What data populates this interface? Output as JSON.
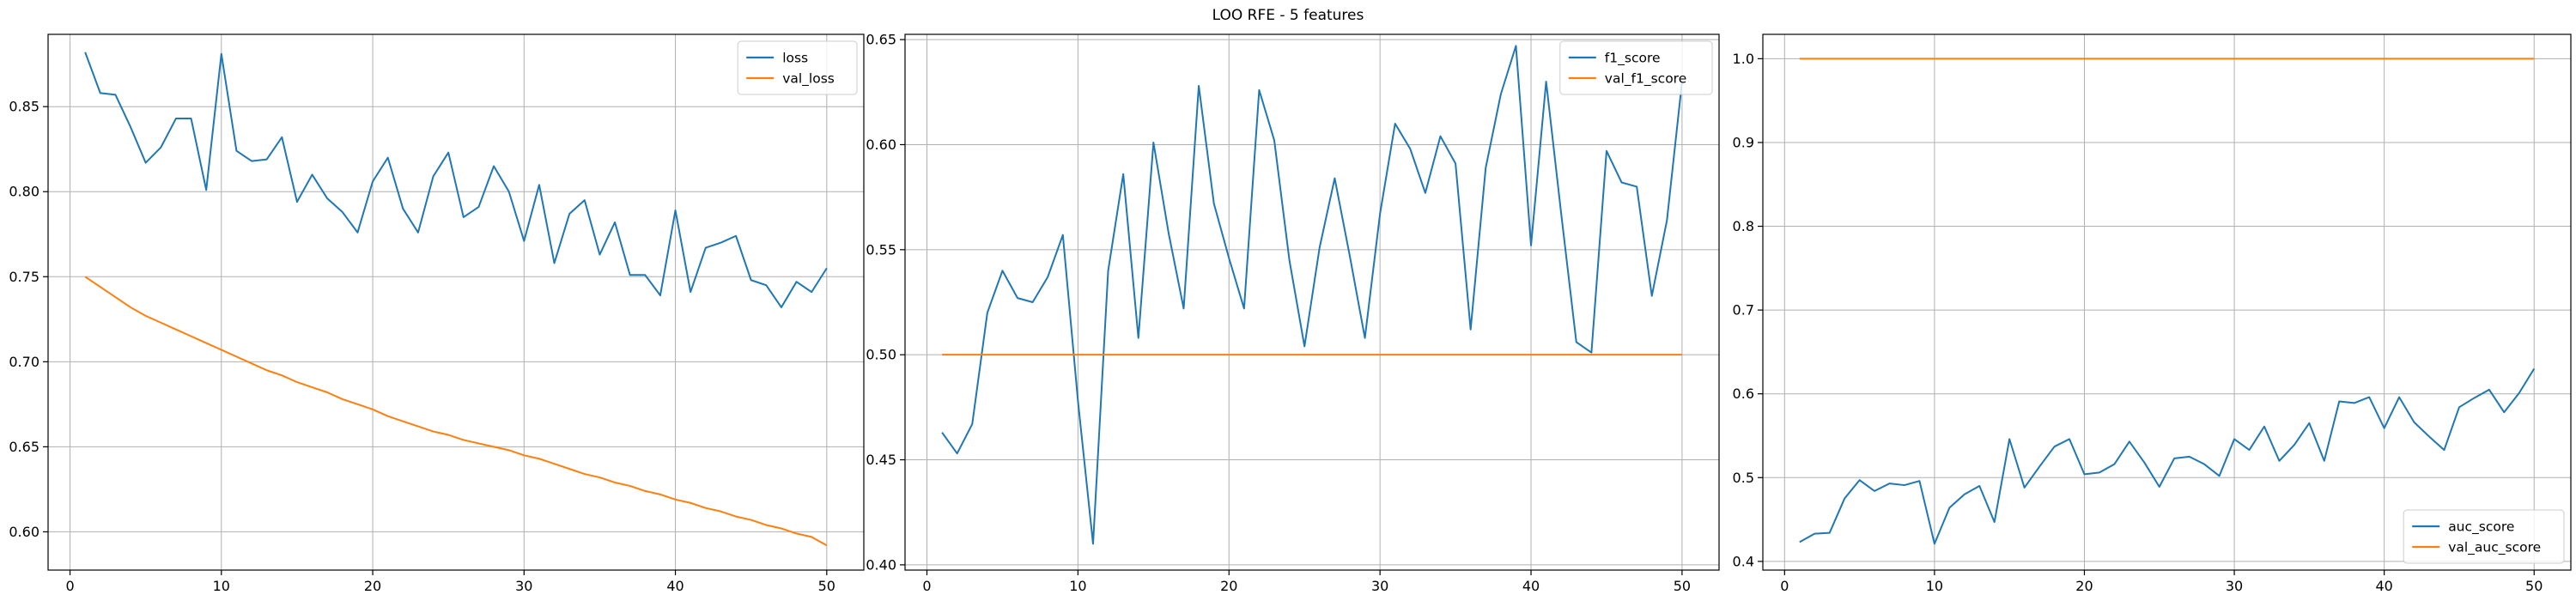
{
  "figure": {
    "title": "LOO RFE - 5 features"
  },
  "colors": {
    "series1": "#1f77b4",
    "series2": "#ff7f0e",
    "grid": "#b0b0b0",
    "axis": "#000000"
  },
  "chart_data": [
    {
      "type": "line",
      "title": "",
      "xlabel": "",
      "ylabel": "",
      "xlim": [
        -1.45,
        52.45
      ],
      "ylim": [
        0.5775,
        0.8925
      ],
      "xticks": [
        0,
        10,
        20,
        30,
        40,
        50
      ],
      "yticks": [
        0.6,
        0.65,
        0.7,
        0.75,
        0.8,
        0.85
      ],
      "ytick_labels": [
        "0.60",
        "0.65",
        "0.70",
        "0.75",
        "0.80",
        "0.85"
      ],
      "grid": true,
      "legend_position": "upper right",
      "x": [
        1,
        2,
        3,
        4,
        5,
        6,
        7,
        8,
        9,
        10,
        11,
        12,
        13,
        14,
        15,
        16,
        17,
        18,
        19,
        20,
        21,
        22,
        23,
        24,
        25,
        26,
        27,
        28,
        29,
        30,
        31,
        32,
        33,
        34,
        35,
        36,
        37,
        38,
        39,
        40,
        41,
        42,
        43,
        44,
        45,
        46,
        47,
        48,
        49,
        50
      ],
      "series": [
        {
          "name": "loss",
          "color": "#1f77b4",
          "values": [
            0.882,
            0.858,
            0.857,
            0.838,
            0.817,
            0.826,
            0.843,
            0.843,
            0.801,
            0.881,
            0.824,
            0.818,
            0.819,
            0.832,
            0.794,
            0.81,
            0.796,
            0.788,
            0.776,
            0.806,
            0.82,
            0.79,
            0.776,
            0.809,
            0.823,
            0.785,
            0.791,
            0.815,
            0.8,
            0.771,
            0.804,
            0.758,
            0.787,
            0.795,
            0.763,
            0.782,
            0.751,
            0.751,
            0.739,
            0.789,
            0.741,
            0.767,
            0.77,
            0.774,
            0.748,
            0.745,
            0.732,
            0.747,
            0.741,
            0.755
          ]
        },
        {
          "name": "val_loss",
          "color": "#ff7f0e",
          "values": [
            0.75,
            0.744,
            0.738,
            0.732,
            0.727,
            0.723,
            0.719,
            0.715,
            0.711,
            0.707,
            0.703,
            0.699,
            0.695,
            0.692,
            0.688,
            0.685,
            0.682,
            0.678,
            0.675,
            0.672,
            0.668,
            0.665,
            0.662,
            0.659,
            0.657,
            0.654,
            0.652,
            0.65,
            0.648,
            0.645,
            0.643,
            0.64,
            0.637,
            0.634,
            0.632,
            0.629,
            0.627,
            0.624,
            0.622,
            0.619,
            0.617,
            0.614,
            0.612,
            0.609,
            0.607,
            0.604,
            0.602,
            0.599,
            0.597,
            0.592
          ]
        }
      ]
    },
    {
      "type": "line",
      "title": "",
      "xlabel": "",
      "ylabel": "",
      "xlim": [
        -1.45,
        52.45
      ],
      "ylim": [
        0.3975,
        0.6525
      ],
      "xticks": [
        0,
        10,
        20,
        30,
        40,
        50
      ],
      "yticks": [
        0.4,
        0.45,
        0.5,
        0.55,
        0.6,
        0.65
      ],
      "ytick_labels": [
        "0.40",
        "0.45",
        "0.50",
        "0.55",
        "0.60",
        "0.65"
      ],
      "grid": true,
      "legend_position": "upper right",
      "x": [
        1,
        2,
        3,
        4,
        5,
        6,
        7,
        8,
        9,
        10,
        11,
        12,
        13,
        14,
        15,
        16,
        17,
        18,
        19,
        20,
        21,
        22,
        23,
        24,
        25,
        26,
        27,
        28,
        29,
        30,
        31,
        32,
        33,
        34,
        35,
        36,
        37,
        38,
        39,
        40,
        41,
        42,
        43,
        44,
        45,
        46,
        47,
        48,
        49,
        50
      ],
      "series": [
        {
          "name": "f1_score",
          "color": "#1f77b4",
          "values": [
            0.463,
            0.453,
            0.467,
            0.52,
            0.54,
            0.527,
            0.525,
            0.537,
            0.557,
            0.478,
            0.41,
            0.54,
            0.586,
            0.508,
            0.601,
            0.558,
            0.522,
            0.628,
            0.572,
            0.546,
            0.522,
            0.626,
            0.602,
            0.545,
            0.504,
            0.551,
            0.584,
            0.547,
            0.508,
            0.567,
            0.61,
            0.598,
            0.577,
            0.604,
            0.591,
            0.512,
            0.589,
            0.624,
            0.647,
            0.552,
            0.63,
            0.567,
            0.506,
            0.501,
            0.597,
            0.582,
            0.58,
            0.528,
            0.564,
            0.63
          ]
        },
        {
          "name": "val_f1_score",
          "color": "#ff7f0e",
          "values": [
            0.5,
            0.5,
            0.5,
            0.5,
            0.5,
            0.5,
            0.5,
            0.5,
            0.5,
            0.5,
            0.5,
            0.5,
            0.5,
            0.5,
            0.5,
            0.5,
            0.5,
            0.5,
            0.5,
            0.5,
            0.5,
            0.5,
            0.5,
            0.5,
            0.5,
            0.5,
            0.5,
            0.5,
            0.5,
            0.5,
            0.5,
            0.5,
            0.5,
            0.5,
            0.5,
            0.5,
            0.5,
            0.5,
            0.5,
            0.5,
            0.5,
            0.5,
            0.5,
            0.5,
            0.5,
            0.5,
            0.5,
            0.5,
            0.5,
            0.5
          ]
        }
      ]
    },
    {
      "type": "line",
      "title": "",
      "xlabel": "",
      "ylabel": "",
      "xlim": [
        -1.45,
        52.45
      ],
      "ylim": [
        0.3896,
        1.0291
      ],
      "xticks": [
        0,
        10,
        20,
        30,
        40,
        50
      ],
      "yticks": [
        0.4,
        0.5,
        0.6,
        0.7,
        0.8,
        0.9,
        1.0
      ],
      "ytick_labels": [
        "0.4",
        "0.5",
        "0.6",
        "0.7",
        "0.8",
        "0.9",
        "1.0"
      ],
      "grid": true,
      "legend_position": "lower right",
      "x": [
        1,
        2,
        3,
        4,
        5,
        6,
        7,
        8,
        9,
        10,
        11,
        12,
        13,
        14,
        15,
        16,
        17,
        18,
        19,
        20,
        21,
        22,
        23,
        24,
        25,
        26,
        27,
        28,
        29,
        30,
        31,
        32,
        33,
        34,
        35,
        36,
        37,
        38,
        39,
        40,
        41,
        42,
        43,
        44,
        45,
        46,
        47,
        48,
        49,
        50
      ],
      "series": [
        {
          "name": "auc_score",
          "color": "#1f77b4",
          "values": [
            0.423,
            0.433,
            0.434,
            0.475,
            0.497,
            0.484,
            0.493,
            0.491,
            0.496,
            0.421,
            0.464,
            0.48,
            0.49,
            0.447,
            0.546,
            0.488,
            0.513,
            0.537,
            0.546,
            0.504,
            0.506,
            0.516,
            0.543,
            0.518,
            0.489,
            0.523,
            0.525,
            0.516,
            0.502,
            0.546,
            0.533,
            0.561,
            0.52,
            0.539,
            0.565,
            0.52,
            0.591,
            0.589,
            0.596,
            0.559,
            0.596,
            0.566,
            0.549,
            0.533,
            0.584,
            0.595,
            0.605,
            0.578,
            0.601,
            0.63
          ]
        },
        {
          "name": "val_auc_score",
          "color": "#ff7f0e",
          "values": [
            1.0,
            1.0,
            1.0,
            1.0,
            1.0,
            1.0,
            1.0,
            1.0,
            1.0,
            1.0,
            1.0,
            1.0,
            1.0,
            1.0,
            1.0,
            1.0,
            1.0,
            1.0,
            1.0,
            1.0,
            1.0,
            1.0,
            1.0,
            1.0,
            1.0,
            1.0,
            1.0,
            1.0,
            1.0,
            1.0,
            1.0,
            1.0,
            1.0,
            1.0,
            1.0,
            1.0,
            1.0,
            1.0,
            1.0,
            1.0,
            1.0,
            1.0,
            1.0,
            1.0,
            1.0,
            1.0,
            1.0,
            1.0,
            1.0,
            1.0
          ]
        }
      ]
    }
  ]
}
